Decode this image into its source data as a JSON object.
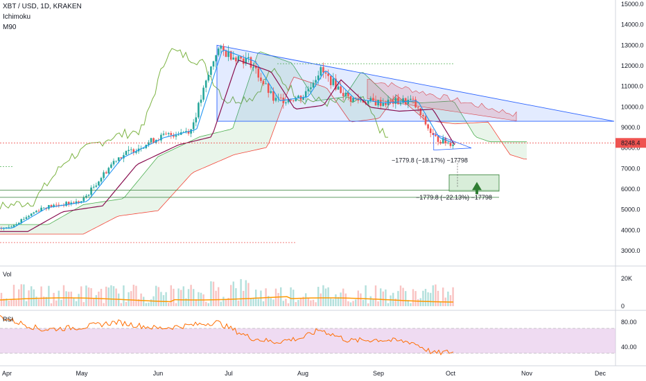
{
  "header": {
    "symbol": "XBT / USD, 1D, KRAKEN",
    "indicator1": "Ichimoku",
    "indicator2": "M90"
  },
  "panes": {
    "volume_label": "Vol",
    "rsi_label": "RSI"
  },
  "annotations": {
    "measure1": "−1779.8 (−18.17%) −17798",
    "measure2": "−1779.8 (−22.13%) −17798"
  },
  "colors": {
    "up": "#26a69a",
    "down": "#ef5350",
    "cloud_bull": "#4caf50",
    "cloud_bear": "#f44336",
    "triangle": "#2962ff",
    "rsi_band": "#e1bee7",
    "rsi_line": "#ff6d00",
    "vol_ma": "#ff9800",
    "price_tag": "#ef5350"
  },
  "chart_data": [
    {
      "type": "line",
      "title": "XBT / USD, 1D, KRAKEN",
      "x_ticks": [
        "Apr",
        "May",
        "Jun",
        "Jul",
        "Aug",
        "Sep",
        "Oct",
        "Nov",
        "Dec"
      ],
      "y_ticks": [
        "15000.0",
        "14000.0",
        "13000.0",
        "12000.0",
        "11000.0",
        "10000.0",
        "9000.0",
        "8000.0",
        "7000.0",
        "6000.0",
        "5000.0",
        "4000.0",
        "3000.0"
      ],
      "ylim": [
        2000,
        15000
      ],
      "last_price": "8248.4",
      "series": [
        {
          "x": [
            "Apr 1",
            "Apr 15",
            "May 1",
            "May 15",
            "Jun 1",
            "Jun 15",
            "Jun 26",
            "Jul 10",
            "Jul 20",
            "Aug 1",
            "Aug 8",
            "Aug 20",
            "Sep 1",
            "Sep 15",
            "Sep 24",
            "Sep 30"
          ],
          "values": [
            4100,
            5100,
            5400,
            7500,
            8500,
            8900,
            12800,
            12200,
            10300,
            10500,
            11800,
            10400,
            10200,
            10300,
            8500,
            8250
          ]
        }
      ]
    },
    {
      "type": "bar",
      "title": "Vol",
      "y_ticks": [
        "20K",
        "0"
      ],
      "ylim": [
        0,
        30000
      ]
    },
    {
      "type": "line",
      "title": "RSI",
      "y_ticks": [
        "80.00",
        "40.00"
      ],
      "ylim": [
        20,
        100
      ],
      "band": [
        30,
        70
      ],
      "series": [
        {
          "x": [
            "Apr 1",
            "Apr 15",
            "May 1",
            "May 15",
            "Jun 1",
            "Jun 15",
            "Jun 26",
            "Jul 10",
            "Jul 20",
            "Aug 1",
            "Aug 8",
            "Aug 20",
            "Sep 1",
            "Sep 15",
            "Sep 24",
            "Sep 30"
          ],
          "values": [
            85,
            68,
            72,
            80,
            70,
            75,
            80,
            55,
            48,
            55,
            68,
            50,
            52,
            48,
            30,
            32
          ]
        }
      ]
    }
  ]
}
